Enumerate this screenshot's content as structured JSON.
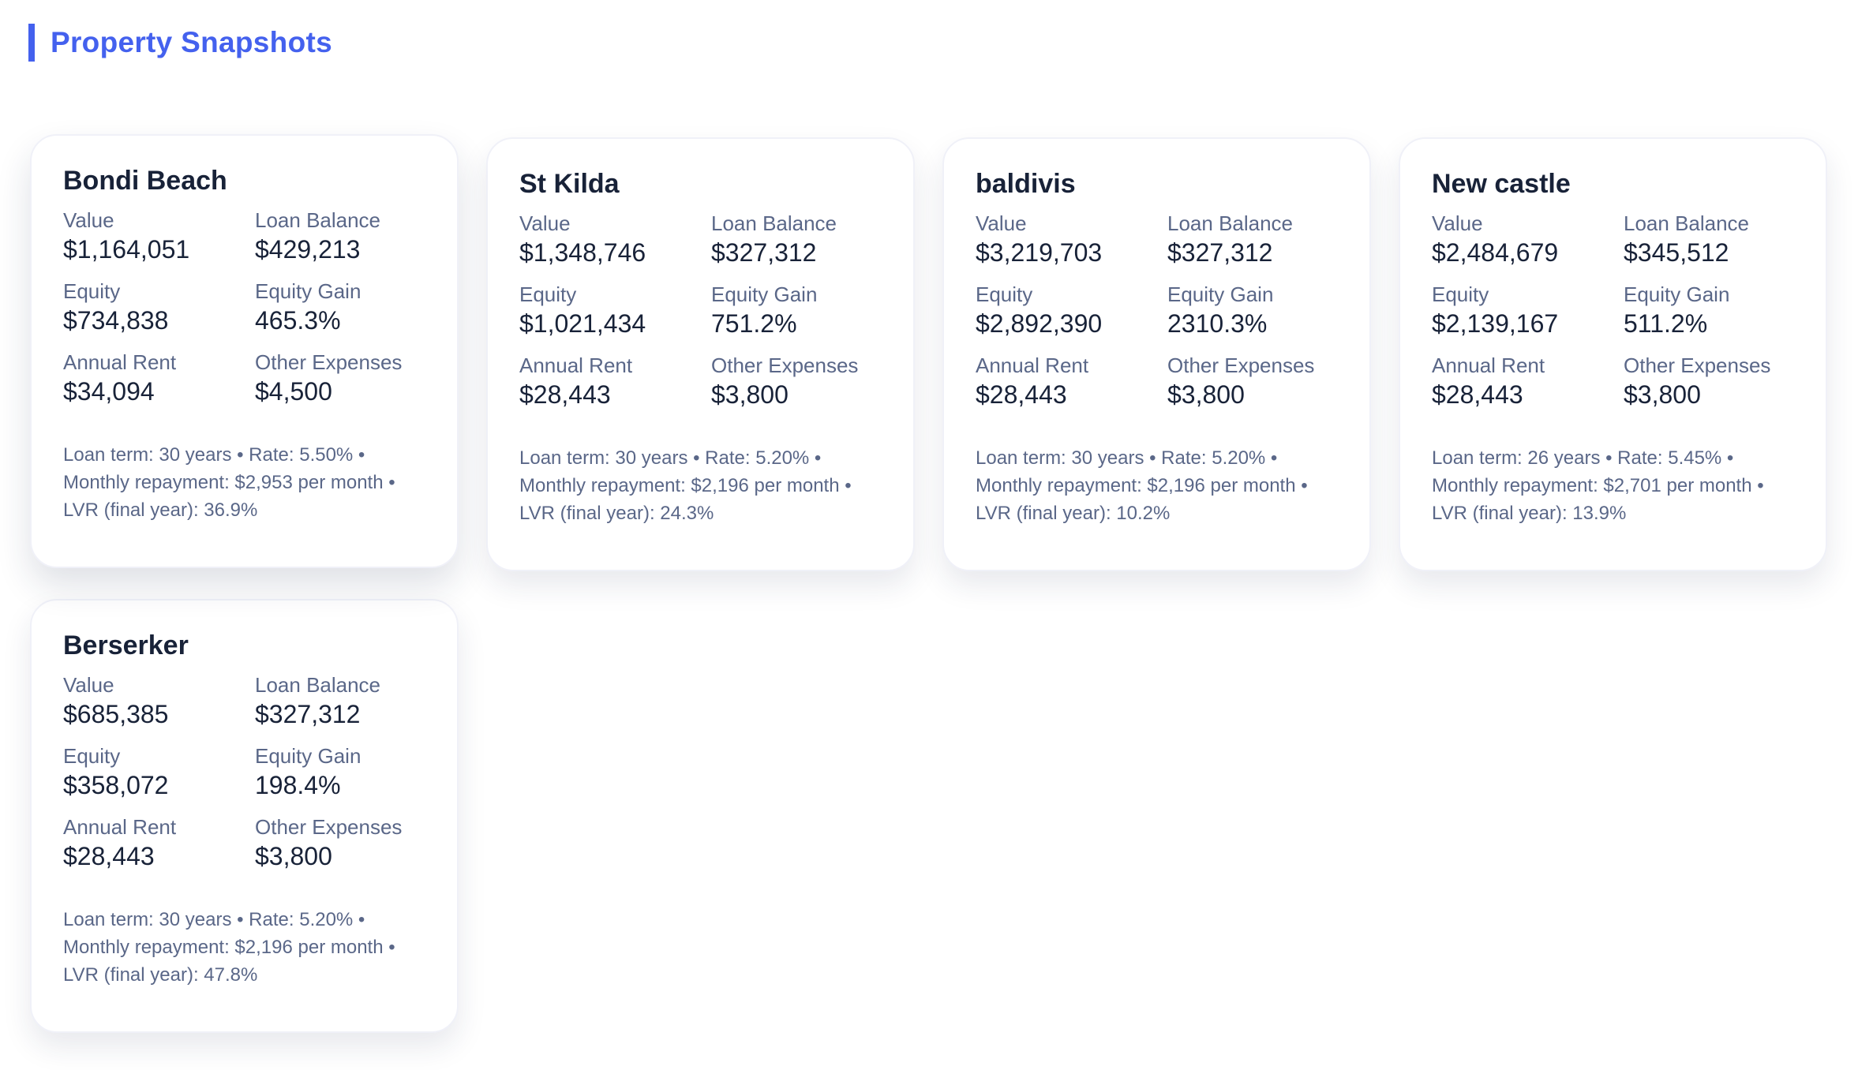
{
  "header": {
    "title": "Property Snapshots"
  },
  "labels": {
    "value": "Value",
    "loan_balance": "Loan Balance",
    "equity": "Equity",
    "equity_gain": "Equity Gain",
    "annual_rent": "Annual Rent",
    "other_expenses": "Other Expenses"
  },
  "properties": [
    {
      "name": "Bondi Beach",
      "value": "$1,164,051",
      "loan_balance": "$429,213",
      "equity": "$734,838",
      "equity_gain": "465.3%",
      "annual_rent": "$34,094",
      "other_expenses": "$4,500",
      "footer": "Loan term: 30 years • Rate: 5.50% • Monthly repayment: $2,953 per month • LVR (final year): 36.9%"
    },
    {
      "name": "St Kilda",
      "value": "$1,348,746",
      "loan_balance": "$327,312",
      "equity": "$1,021,434",
      "equity_gain": "751.2%",
      "annual_rent": "$28,443",
      "other_expenses": "$3,800",
      "footer": "Loan term: 30 years • Rate: 5.20% • Monthly repayment: $2,196 per month • LVR (final year): 24.3%"
    },
    {
      "name": "baldivis",
      "value": "$3,219,703",
      "loan_balance": "$327,312",
      "equity": "$2,892,390",
      "equity_gain": "2310.3%",
      "annual_rent": "$28,443",
      "other_expenses": "$3,800",
      "footer": "Loan term: 30 years • Rate: 5.20% • Monthly repayment: $2,196 per month • LVR (final year): 10.2%"
    },
    {
      "name": "New castle",
      "value": "$2,484,679",
      "loan_balance": "$345,512",
      "equity": "$2,139,167",
      "equity_gain": "511.2%",
      "annual_rent": "$28,443",
      "other_expenses": "$3,800",
      "footer": "Loan term: 26 years • Rate: 5.45% • Monthly repayment: $2,701 per month • LVR (final year): 13.9%"
    },
    {
      "name": "Berserker",
      "value": "$685,385",
      "loan_balance": "$327,312",
      "equity": "$358,072",
      "equity_gain": "198.4%",
      "annual_rent": "$28,443",
      "other_expenses": "$3,800",
      "footer": "Loan term: 30 years • Rate: 5.20% • Monthly repayment: $2,196 per month • LVR (final year): 47.8%"
    }
  ]
}
